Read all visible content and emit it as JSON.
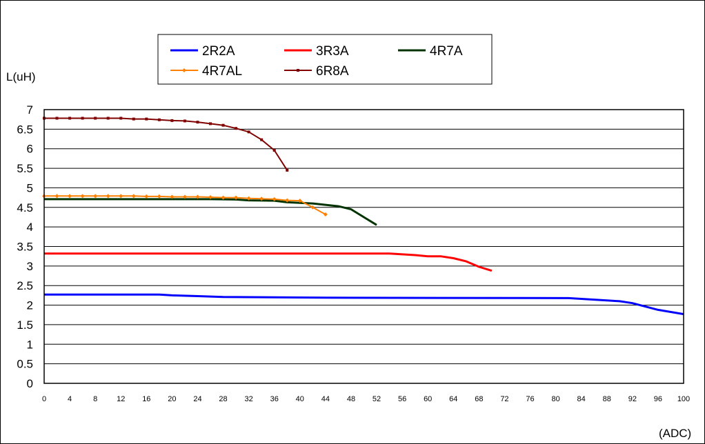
{
  "chart_data": {
    "type": "line",
    "title": "",
    "ylabel": "L(uH)",
    "xlabel": "(ADC)",
    "xlim": [
      0,
      100
    ],
    "ylim": [
      0,
      7
    ],
    "x_ticks": [
      "0",
      "4",
      "8",
      "12",
      "16",
      "20",
      "24",
      "28",
      "32",
      "36",
      "40",
      "44",
      "48",
      "52",
      "56",
      "60",
      "64",
      "68",
      "72",
      "76",
      "80",
      "84",
      "88",
      "92",
      "96",
      "100"
    ],
    "y_ticks": [
      "0",
      "0.5",
      "1",
      "1.5",
      "2",
      "2.5",
      "3",
      "3.5",
      "4",
      "4.5",
      "5",
      "5.5",
      "6",
      "6.5",
      "7"
    ],
    "grid": "horizontal",
    "legend_position": "top",
    "series": [
      {
        "name": "2R2A",
        "color": "#0000ff",
        "marker": "none",
        "x": [
          0,
          18,
          20,
          24,
          26,
          28,
          44,
          82,
          86,
          90,
          92,
          96,
          100
        ],
        "y": [
          2.27,
          2.27,
          2.25,
          2.23,
          2.22,
          2.21,
          2.19,
          2.18,
          2.14,
          2.1,
          2.05,
          1.88,
          1.77
        ]
      },
      {
        "name": "3R3A",
        "color": "#ff0000",
        "marker": "none",
        "x": [
          0,
          54,
          58,
          60,
          62,
          64,
          66,
          68,
          70
        ],
        "y": [
          3.32,
          3.32,
          3.28,
          3.25,
          3.25,
          3.2,
          3.12,
          2.98,
          2.88
        ]
      },
      {
        "name": "4R7A",
        "color": "#003300",
        "marker": "none",
        "x": [
          0,
          26,
          30,
          32,
          36,
          38,
          42,
          46,
          48,
          50,
          52
        ],
        "y": [
          4.71,
          4.71,
          4.7,
          4.68,
          4.67,
          4.63,
          4.6,
          4.53,
          4.45,
          4.25,
          4.05
        ]
      },
      {
        "name": "4R7AL",
        "color": "#ff8000",
        "marker": "diamond",
        "x": [
          0,
          2,
          4,
          6,
          8,
          10,
          12,
          14,
          16,
          18,
          20,
          22,
          24,
          26,
          28,
          30,
          32,
          34,
          36,
          38,
          40,
          42,
          44
        ],
        "y": [
          4.79,
          4.79,
          4.79,
          4.79,
          4.79,
          4.79,
          4.79,
          4.79,
          4.78,
          4.78,
          4.77,
          4.77,
          4.77,
          4.76,
          4.75,
          4.75,
          4.73,
          4.72,
          4.71,
          4.68,
          4.67,
          4.5,
          4.32
        ]
      },
      {
        "name": "6R8A",
        "color": "#800000",
        "marker": "square",
        "x": [
          0,
          2,
          4,
          6,
          8,
          10,
          12,
          14,
          16,
          18,
          20,
          22,
          24,
          26,
          28,
          30,
          32,
          34,
          36,
          38
        ],
        "y": [
          6.78,
          6.78,
          6.78,
          6.78,
          6.78,
          6.78,
          6.78,
          6.76,
          6.76,
          6.74,
          6.72,
          6.71,
          6.68,
          6.64,
          6.6,
          6.52,
          6.43,
          6.23,
          5.96,
          5.45
        ]
      }
    ]
  }
}
